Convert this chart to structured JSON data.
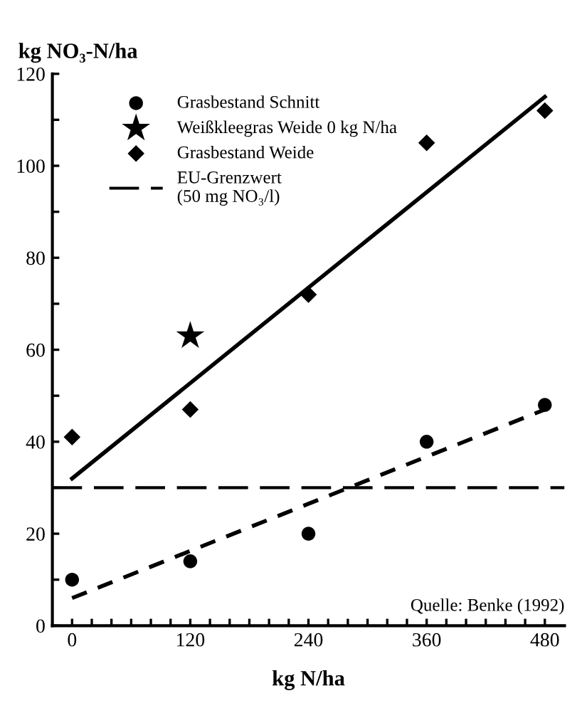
{
  "chart_data": {
    "type": "scatter",
    "ylabel": "kg NO₃-N/ha",
    "xlabel": "kg N/ha",
    "x": [
      0,
      120,
      240,
      360,
      480
    ],
    "series": [
      {
        "name": "Grasbestand Schnitt",
        "marker": "circle",
        "color": "#000000",
        "values": [
          10,
          14,
          20,
          40,
          48
        ]
      },
      {
        "name": "Weißkleegras Weide 0 kg N/ha",
        "marker": "star",
        "color": "#000000",
        "x": [
          120
        ],
        "values": [
          63
        ]
      },
      {
        "name": "Grasbestand Weide",
        "marker": "diamond",
        "color": "#000000",
        "values": [
          41,
          47,
          72,
          105,
          112
        ]
      },
      {
        "type": "line",
        "line_style": "solid",
        "color": "#000000",
        "x": [
          0,
          480
        ],
        "values": [
          32,
          115
        ]
      },
      {
        "type": "line",
        "line_style": "dashed",
        "color": "#000000",
        "x": [
          0,
          480
        ],
        "values": [
          6,
          47
        ]
      }
    ],
    "ref_lines": [
      {
        "axis": "y",
        "value": 30,
        "label": "EU-Grenzwert\n(50 mg NO₃/l)",
        "color": "#000000",
        "line_style": "dashed"
      }
    ],
    "xlim": [
      -20,
      500
    ],
    "ylim": [
      0,
      120
    ],
    "xticks": [
      0,
      {
        "value": 20,
        "label": null
      },
      {
        "value": 40,
        "label": null
      },
      {
        "value": 60,
        "label": null
      },
      {
        "value": 80,
        "label": null
      },
      {
        "value": 100,
        "label": null
      },
      120,
      {
        "value": 140,
        "label": null
      },
      {
        "value": 160,
        "label": null
      },
      {
        "value": 180,
        "label": null
      },
      {
        "value": 200,
        "label": null
      },
      {
        "value": 220,
        "label": null
      },
      240,
      {
        "value": 260,
        "label": null
      },
      {
        "value": 280,
        "label": null
      },
      {
        "value": 300,
        "label": null
      },
      {
        "value": 320,
        "label": null
      },
      {
        "value": 340,
        "label": null
      },
      360,
      {
        "value": 380,
        "label": null
      },
      {
        "value": 400,
        "label": null
      },
      {
        "value": 420,
        "label": null
      },
      {
        "value": 440,
        "label": null
      },
      {
        "value": 460,
        "label": null
      },
      480
    ],
    "yticks": [
      0,
      {
        "value": 10,
        "label": null
      },
      20,
      {
        "value": 30,
        "label": null
      },
      40,
      {
        "value": 50,
        "label": null
      },
      60,
      {
        "value": 70,
        "label": null
      },
      80,
      {
        "value": 90,
        "label": null
      },
      100,
      {
        "value": 110,
        "label": null
      },
      120
    ],
    "grid": false,
    "legend": "top left",
    "annotations": [
      "Quelle: Benke (1992)"
    ]
  }
}
